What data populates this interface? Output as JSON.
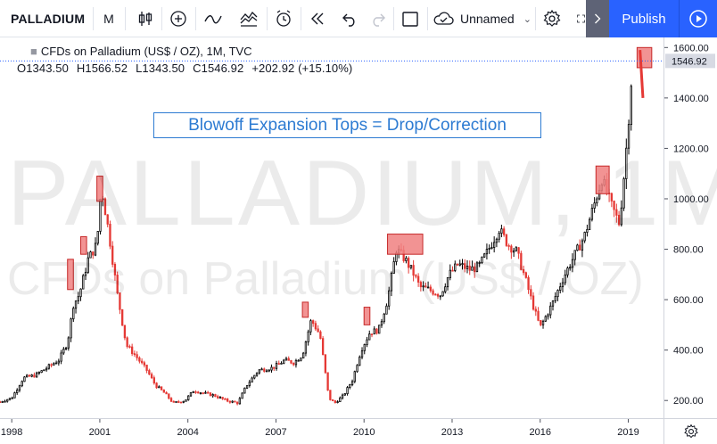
{
  "toolbar": {
    "symbol": "PALLADIUM",
    "interval": "M",
    "layout_name": "Unnamed",
    "publish_label": "Publish"
  },
  "legend": {
    "title": "CFDs on Palladium (US$ / OZ), 1M, TVC",
    "open": "O1343.50",
    "high": "H1566.52",
    "low": "L1343.50",
    "close": "C1546.92",
    "change": "+202.92 (+15.10%)"
  },
  "annotation": {
    "text": "Blowoff Expansion Tops = Drop/Correction"
  },
  "watermark": {
    "line1": "PALLADIUM, 1M",
    "line2": "CFDs on Palladium (US$ / OZ)"
  },
  "price_scale": {
    "ticks": [
      "1600.00",
      "1400.00",
      "1200.00",
      "1000.00",
      "800.00",
      "600.00",
      "400.00",
      "200.00"
    ],
    "last_price": "1546.92"
  },
  "time_scale": {
    "ticks": [
      "1998",
      "2001",
      "2004",
      "2007",
      "2010",
      "2013",
      "2016",
      "2019"
    ]
  },
  "colors": {
    "up": "#000000",
    "down": "#e53935",
    "highlight_fill": "#f08080",
    "highlight_stroke": "#c62828",
    "annotation": "#2d7bd2",
    "publish": "#2962ff",
    "last_price_line": "#2962ff"
  },
  "chart_data": {
    "type": "candlestick",
    "interval": "1M",
    "x_range": [
      1997.6,
      2020.2
    ],
    "y_range": [
      130,
      1640
    ],
    "approx_monthly_close": [
      [
        1997.6,
        195
      ],
      [
        1998.0,
        210
      ],
      [
        1998.4,
        290
      ],
      [
        1998.8,
        300
      ],
      [
        1999.2,
        330
      ],
      [
        1999.6,
        360
      ],
      [
        1999.9,
        430
      ],
      [
        2000.1,
        580
      ],
      [
        2000.3,
        620
      ],
      [
        2000.6,
        760
      ],
      [
        2000.9,
        820
      ],
      [
        2001.05,
        1050
      ],
      [
        2001.3,
        870
      ],
      [
        2001.6,
        620
      ],
      [
        2001.9,
        420
      ],
      [
        2002.2,
        380
      ],
      [
        2002.6,
        320
      ],
      [
        2002.9,
        260
      ],
      [
        2003.2,
        230
      ],
      [
        2003.5,
        190
      ],
      [
        2003.9,
        200
      ],
      [
        2004.2,
        240
      ],
      [
        2004.5,
        230
      ],
      [
        2004.9,
        220
      ],
      [
        2005.3,
        200
      ],
      [
        2005.7,
        190
      ],
      [
        2006.0,
        260
      ],
      [
        2006.4,
        320
      ],
      [
        2006.9,
        330
      ],
      [
        2007.3,
        360
      ],
      [
        2007.6,
        350
      ],
      [
        2007.9,
        380
      ],
      [
        2008.2,
        520
      ],
      [
        2008.5,
        460
      ],
      [
        2008.8,
        210
      ],
      [
        2009.0,
        190
      ],
      [
        2009.3,
        220
      ],
      [
        2009.6,
        280
      ],
      [
        2009.9,
        400
      ],
      [
        2010.2,
        470
      ],
      [
        2010.5,
        480
      ],
      [
        2010.8,
        600
      ],
      [
        2011.1,
        800
      ],
      [
        2011.4,
        760
      ],
      [
        2011.7,
        700
      ],
      [
        2011.9,
        650
      ],
      [
        2012.2,
        640
      ],
      [
        2012.6,
        620
      ],
      [
        2012.9,
        700
      ],
      [
        2013.2,
        740
      ],
      [
        2013.6,
        720
      ],
      [
        2013.9,
        730
      ],
      [
        2014.2,
        790
      ],
      [
        2014.6,
        880
      ],
      [
        2014.9,
        820
      ],
      [
        2015.2,
        790
      ],
      [
        2015.5,
        680
      ],
      [
        2015.8,
        560
      ],
      [
        2016.0,
        490
      ],
      [
        2016.4,
        580
      ],
      [
        2016.8,
        690
      ],
      [
        2017.1,
        760
      ],
      [
        2017.5,
        850
      ],
      [
        2017.9,
        1000
      ],
      [
        2018.1,
        1080
      ],
      [
        2018.4,
        980
      ],
      [
        2018.7,
        900
      ],
      [
        2018.9,
        1150
      ],
      [
        2019.0,
        1300
      ],
      [
        2019.15,
        1546.92
      ]
    ],
    "highlight_boxes": [
      {
        "x": [
          1999.9,
          2000.1
        ],
        "y": [
          640,
          760
        ]
      },
      {
        "x": [
          2000.35,
          2000.55
        ],
        "y": [
          780,
          850
        ]
      },
      {
        "x": [
          2000.9,
          2001.1
        ],
        "y": [
          990,
          1090
        ]
      },
      {
        "x": [
          2007.9,
          2008.1
        ],
        "y": [
          530,
          590
        ]
      },
      {
        "x": [
          2010.0,
          2010.2
        ],
        "y": [
          500,
          570
        ]
      },
      {
        "x": [
          2010.8,
          2012.0
        ],
        "y": [
          780,
          860
        ]
      },
      {
        "x": [
          2017.9,
          2018.35
        ],
        "y": [
          1020,
          1130
        ]
      },
      {
        "x": [
          2019.3,
          2019.8
        ],
        "y": [
          1520,
          1600
        ]
      }
    ],
    "trend_arrow": {
      "from": [
        2019.4,
        1590
      ],
      "to": [
        2019.5,
        1400
      ]
    }
  }
}
